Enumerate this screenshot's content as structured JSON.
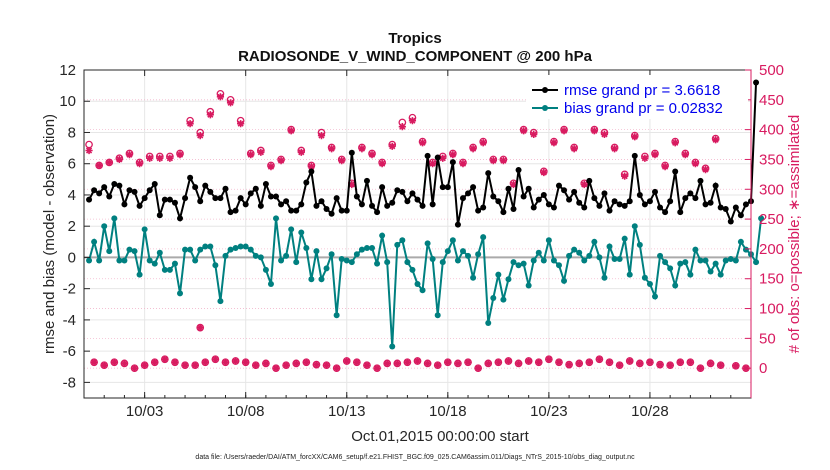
{
  "chart_data": {
    "type": "line",
    "title": "Tropics",
    "subtitle": "RADIOSONDE_V_WIND_COMPONENT @ 200 hPa",
    "xlabel": "Oct.01,2015 00:00:00 start",
    "ylabel_left": "rmse and bias (model - observation)",
    "ylabel_right": "# of obs: o=possible; ∗=assimilated",
    "footnote": "data file: /Users/raeder/DAI/ATM_forcXX/CAM6_setup/f.e21.FHIST_BGC.f09_025.CAM6assim.011/Diags_NTrS_2015-10/obs_diag_output.nc",
    "xlim": [
      0,
      33
    ],
    "ylim_left": [
      -9,
      12
    ],
    "ylim_right": [
      -50,
      500
    ],
    "x_ticks": [
      3,
      8,
      13,
      18,
      23,
      28
    ],
    "x_tick_labels": [
      "10/03",
      "10/08",
      "10/13",
      "10/18",
      "10/23",
      "10/28"
    ],
    "y_ticks_left": [
      -8,
      -6,
      -4,
      -2,
      0,
      2,
      4,
      6,
      8,
      10,
      12
    ],
    "y_ticks_right": [
      0,
      50,
      100,
      150,
      200,
      250,
      300,
      350,
      400,
      450,
      500
    ],
    "grid": true,
    "legend_position": "top-right",
    "legend": [
      {
        "name": "rmse grand pr = 3.6618",
        "color": "#000000"
      },
      {
        "name": "bias grand pr = 0.02832",
        "color": "#008080"
      }
    ],
    "series": [
      {
        "name": "rmse",
        "color": "#000000",
        "axis": "left",
        "values": [
          3.7,
          4.3,
          4.1,
          4.5,
          3.9,
          4.7,
          4.6,
          3.4,
          4.3,
          4.2,
          3.3,
          3.8,
          4.3,
          4.7,
          2.7,
          3.7,
          3.7,
          3.5,
          2.5,
          3.8,
          5.1,
          4.5,
          3.6,
          4.6,
          4.2,
          3.8,
          3.8,
          4.4,
          2.9,
          3.0,
          3.8,
          3.4,
          4.1,
          4.4,
          3.3,
          4.7,
          3.9,
          3.9,
          3.4,
          3.6,
          3.0,
          3.0,
          3.4,
          4.8,
          5.5,
          3.3,
          3.6,
          3.1,
          2.8,
          3.8,
          3.0,
          3.0,
          6.7,
          3.9,
          3.4,
          4.9,
          3.3,
          2.9,
          4.5,
          3.3,
          3.5,
          4.3,
          4.2,
          3.6,
          4.1,
          3.7,
          3.3,
          6.5,
          3.4,
          6.4,
          4.5,
          4.5,
          6.1,
          2.1,
          3.8,
          4.1,
          4.5,
          3.0,
          3.2,
          5.4,
          3.9,
          3.6,
          2.9,
          4.4,
          3.1,
          5.6,
          3.9,
          4.4,
          3.2,
          3.7,
          4.0,
          3.4,
          3.2,
          4.6,
          4.3,
          3.7,
          4.2,
          3.5,
          3.2,
          4.9,
          3.8,
          3.3,
          4.1,
          3.0,
          3.6,
          3.4,
          3.3,
          3.6,
          6.5,
          4.0,
          3.4,
          3.6,
          4.2,
          3.2,
          2.9,
          3.6,
          5.5,
          2.9,
          3.8,
          4.1,
          3.8,
          4.9,
          3.4,
          3.5,
          4.6,
          3.2,
          3.1,
          2.3,
          3.2,
          2.7,
          3.4,
          3.6,
          11.2
        ],
        "x_start": 0.25,
        "x_step": 0.25
      },
      {
        "name": "bias",
        "color": "#008080",
        "axis": "left",
        "values": [
          -0.2,
          1.0,
          -0.2,
          2.0,
          0.4,
          2.5,
          -0.2,
          -0.2,
          0.5,
          0.4,
          -1.1,
          1.8,
          -0.2,
          -0.4,
          0.3,
          -0.8,
          -0.8,
          -0.4,
          -2.3,
          0.5,
          0.5,
          -0.2,
          0.5,
          0.7,
          0.7,
          -0.5,
          -2.8,
          0.1,
          0.5,
          0.6,
          0.7,
          0.7,
          0.5,
          0.1,
          0.0,
          -0.8,
          -1.7,
          2.5,
          -0.2,
          0.1,
          1.8,
          -0.3,
          1.6,
          0.6,
          -1.4,
          0.4,
          -1.4,
          -0.7,
          0.2,
          -3.7,
          -0.1,
          -0.2,
          -0.3,
          0.2,
          0.5,
          0.6,
          0.6,
          -0.4,
          1.4,
          -0.3,
          -5.7,
          0.8,
          1.1,
          -0.3,
          -0.8,
          -1.7,
          -2.1,
          0.9,
          -0.1,
          -3.7,
          -0.3,
          0.4,
          1.1,
          -0.2,
          0.4,
          0.1,
          -1.3,
          0.2,
          1.3,
          -4.2,
          -2.6,
          -1.1,
          -2.7,
          -1.4,
          -0.3,
          -0.5,
          -0.4,
          -1.8,
          -0.2,
          0.3,
          -0.2,
          1.1,
          -0.2,
          -0.5,
          -1.5,
          0.1,
          0.5,
          0.3,
          -0.2,
          0.1,
          1.0,
          0.0,
          -1.3,
          0.7,
          -0.1,
          -0.1,
          1.2,
          -1.1,
          2.0,
          0.8,
          -1.3,
          -1.7,
          -2.5,
          0.1,
          -0.3,
          -0.7,
          -1.8,
          -0.4,
          -0.3,
          -1.1,
          0.5,
          -0.2,
          -0.2,
          -0.9,
          -0.4,
          -1.1,
          -0.2,
          -0.1,
          -0.2,
          1.0,
          0.5,
          0.2,
          -0.3,
          2.5
        ],
        "x_start": 0.25,
        "x_step": 0.25
      },
      {
        "name": "possible",
        "color": "#d81b60",
        "axis": "right",
        "marker": "circle",
        "values": [
          375,
          10,
          340,
          5,
          345,
          10,
          352,
          8,
          360,
          0,
          345,
          5,
          355,
          10,
          355,
          15,
          355,
          10,
          360,
          5,
          415,
          5,
          395,
          10,
          430,
          15,
          460,
          10,
          450,
          12,
          415,
          10,
          360,
          5,
          365,
          8,
          340,
          0,
          350,
          5,
          400,
          8,
          365,
          10,
          340,
          6,
          395,
          5,
          370,
          0,
          350,
          12,
          310,
          10,
          370,
          5,
          360,
          0,
          345,
          8,
          375,
          8,
          412,
          10,
          420,
          12,
          380,
          8,
          345,
          5,
          355,
          10,
          360,
          8,
          345,
          10,
          370,
          0,
          380,
          8,
          350,
          10,
          350,
          12,
          310,
          8,
          400,
          12,
          395,
          10,
          330,
          15,
          380,
          10,
          400,
          6,
          370,
          8,
          310,
          10,
          400,
          15,
          395,
          10,
          370,
          5,
          325,
          12,
          390,
          8,
          355,
          10,
          360,
          6,
          340,
          5,
          380,
          10,
          360,
          10,
          345,
          0,
          335,
          8,
          385,
          5
        ],
        "x_start": 0.25,
        "x_step": 0.25
      },
      {
        "name": "assimilated",
        "color": "#d81b60",
        "axis": "right",
        "marker": "star",
        "values": [
          365,
          10,
          340,
          5,
          345,
          10,
          350,
          8,
          358,
          0,
          343,
          5,
          352,
          10,
          352,
          15,
          352,
          10,
          358,
          5,
          410,
          5,
          390,
          10,
          425,
          15,
          455,
          10,
          445,
          12,
          410,
          10,
          358,
          5,
          362,
          8,
          338,
          0,
          348,
          5,
          398,
          8,
          362,
          10,
          338,
          6,
          390,
          5,
          368,
          0,
          348,
          12,
          308,
          10,
          368,
          5,
          358,
          0,
          343,
          8,
          372,
          8,
          405,
          10,
          415,
          12,
          378,
          8,
          343,
          5,
          352,
          10,
          358,
          8,
          343,
          10,
          368,
          0,
          378,
          8,
          348,
          10,
          348,
          12,
          308,
          8,
          398,
          12,
          392,
          10,
          328,
          15,
          378,
          10,
          398,
          6,
          368,
          8,
          308,
          10,
          398,
          15,
          392,
          10,
          368,
          5,
          322,
          12,
          388,
          8,
          352,
          10,
          358,
          6,
          338,
          5,
          378,
          10,
          358,
          10,
          343,
          0,
          333,
          8,
          383,
          5
        ],
        "x_start": 0.25,
        "x_step": 0.25
      },
      {
        "name": "outlier",
        "color": "#d81b60",
        "axis": "right",
        "marker": "both",
        "points": [
          [
            5.75,
            68
          ],
          [
            32.25,
            4
          ],
          [
            32.75,
            0
          ]
        ]
      }
    ]
  }
}
